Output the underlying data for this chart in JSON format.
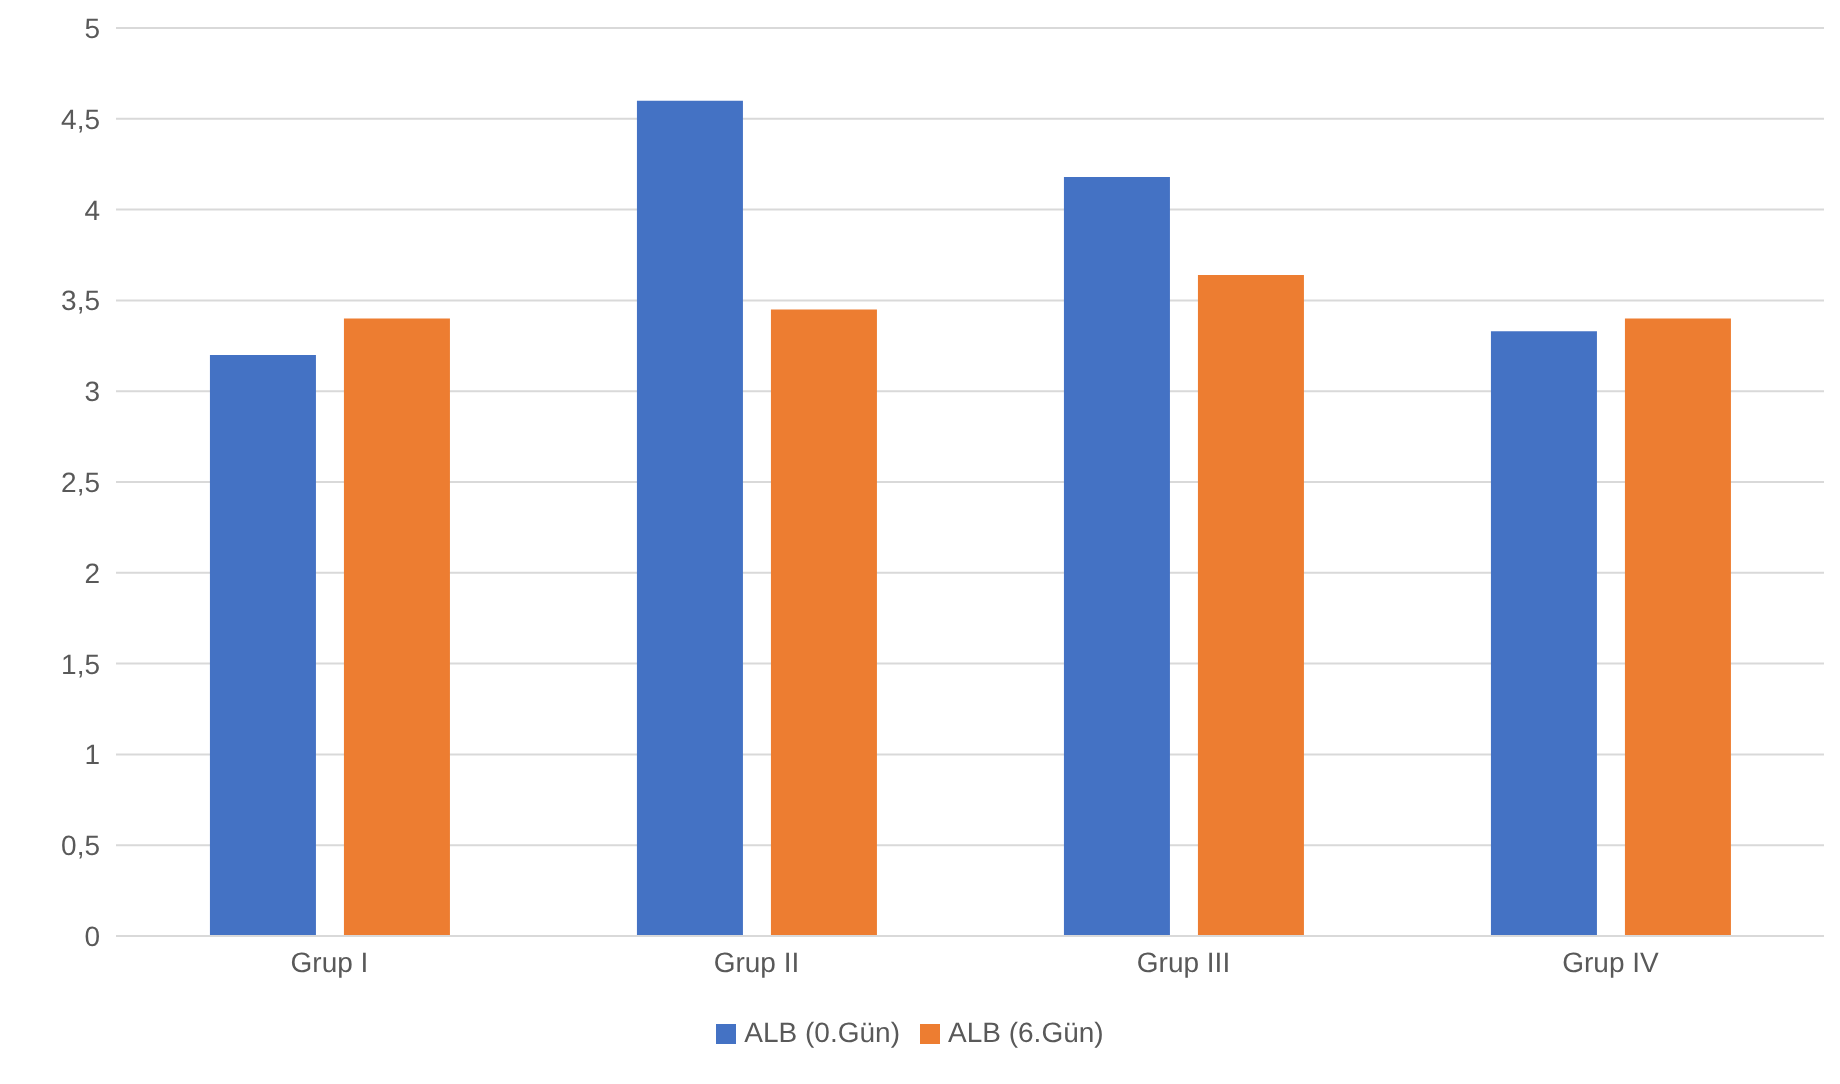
{
  "chart_data": {
    "type": "bar",
    "categories": [
      "Grup I",
      "Grup II",
      "Grup III",
      "Grup IV"
    ],
    "series": [
      {
        "name": "ALB (0.Gün)",
        "color": "#4472c4",
        "values": [
          3.2,
          4.6,
          4.18,
          3.33
        ]
      },
      {
        "name": "ALB (6.Gün)",
        "color": "#ed7d31",
        "values": [
          3.4,
          3.45,
          3.64,
          3.4
        ]
      }
    ],
    "ylim": [
      0,
      5
    ],
    "yticks": [
      0,
      {
        "value": 0.5,
        "label": "0,5"
      },
      1,
      {
        "value": 1.5,
        "label": "1,5"
      },
      2,
      {
        "value": 2.5,
        "label": "2,5"
      },
      3,
      {
        "value": 3.5,
        "label": "3,5"
      },
      4,
      {
        "value": 4.5,
        "label": "4,5"
      },
      5
    ],
    "grid": "y",
    "legend": "bottom"
  }
}
